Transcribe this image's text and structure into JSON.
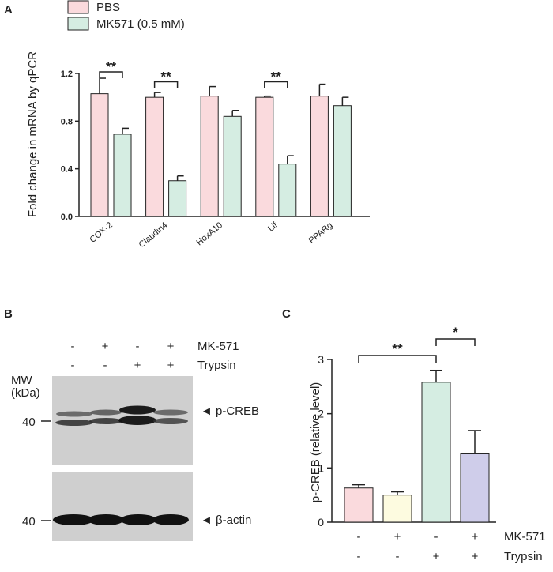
{
  "panel_labels": {
    "a": "A",
    "b": "B",
    "c": "C"
  },
  "chart_data": [
    {
      "type": "bar",
      "panel": "A",
      "ylabel": "Fold change in mRNA by qPCR",
      "xlabel": "",
      "ylim": [
        0,
        1.2
      ],
      "yticks": [
        "0.0",
        "0.4",
        "0.8",
        "1.2"
      ],
      "categories": [
        "COX-2",
        "Claudin4",
        "HoxA10",
        "Lif",
        "PPARg"
      ],
      "series": [
        {
          "name": "PBS",
          "color": "#fadadd",
          "values": [
            1.03,
            1.0,
            1.01,
            1.0,
            1.01
          ],
          "errors": [
            0.13,
            0.04,
            0.08,
            0.01,
            0.1
          ]
        },
        {
          "name": "MK571 (0.5 mM)",
          "color": "#d5ede2",
          "values": [
            0.69,
            0.3,
            0.84,
            0.44,
            0.93
          ],
          "errors": [
            0.05,
            0.04,
            0.05,
            0.07,
            0.07
          ]
        }
      ],
      "significance": [
        {
          "category": "COX-2",
          "label": "**"
        },
        {
          "category": "Claudin4",
          "label": "**"
        },
        {
          "category": "Lif",
          "label": "**"
        }
      ],
      "legend_position": "top-left",
      "grid": false
    },
    {
      "type": "bar",
      "panel": "C",
      "ylabel": "p-CREB (relative level)",
      "ylim": [
        0,
        3
      ],
      "yticks": [
        "0",
        "1",
        "2",
        "3"
      ],
      "categories": [
        "1",
        "2",
        "3",
        "4"
      ],
      "values": [
        0.63,
        0.5,
        2.58,
        1.26
      ],
      "errors": [
        0.06,
        0.06,
        0.22,
        0.43
      ],
      "colors": [
        "#fadadd",
        "#fdfbe0",
        "#d5ede2",
        "#cfcdea"
      ],
      "conditions": {
        "mk571": {
          "label": "MK-571",
          "values": [
            "-",
            "+",
            "-",
            "+"
          ]
        },
        "trypsin": {
          "label": "Trypsin",
          "values": [
            "-",
            "-",
            "+",
            "+"
          ]
        }
      },
      "significance": [
        {
          "from": 1,
          "to": 3,
          "label": "**"
        },
        {
          "from": 3,
          "to": 4,
          "label": "*"
        }
      ],
      "grid": false
    }
  ],
  "blot": {
    "mw_label_line1": "MW",
    "mw_label_line2": "(kDa)",
    "mw_marker": "40",
    "band_top_label": "◄ p-CREB",
    "band_bottom_label": "◄ β-actin",
    "mk571_row": [
      "-",
      "+",
      "-",
      "+"
    ],
    "trypsin_row": [
      "-",
      "-",
      "+",
      "+"
    ],
    "mk571_label": "MK-571",
    "trypsin_label": "Trypsin"
  }
}
